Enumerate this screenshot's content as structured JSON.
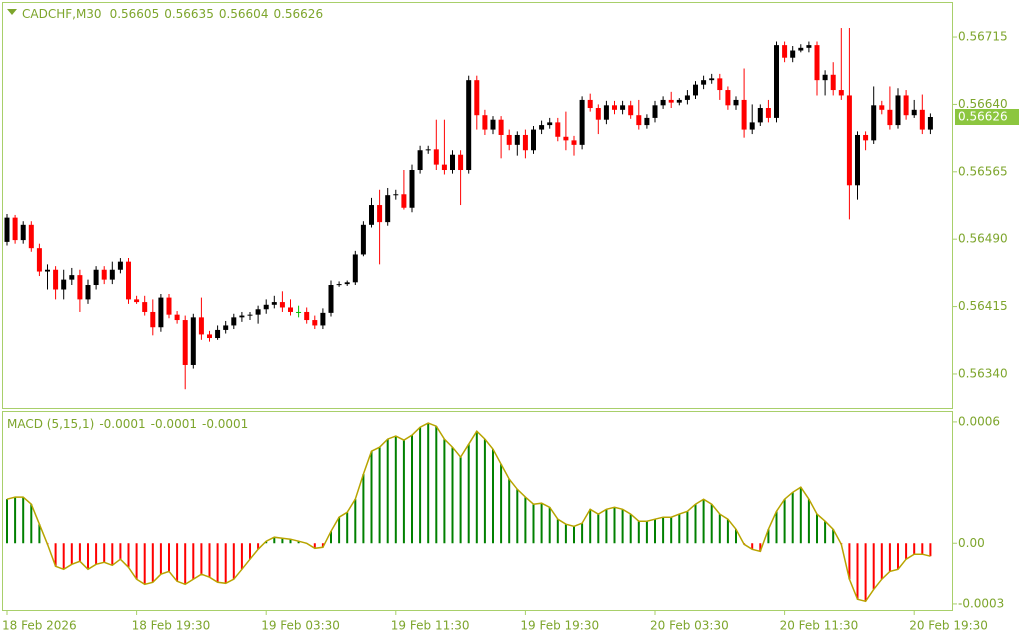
{
  "chart_data": [
    {
      "type": "candlestick",
      "title": "CADCHF,M30",
      "header_values": [
        0.56605,
        0.56635,
        0.56604,
        0.56626
      ],
      "categories": [
        "18 Feb 2026",
        null,
        null,
        null,
        null,
        null,
        null,
        null,
        null,
        null,
        null,
        null,
        null,
        null,
        null,
        null,
        "18 Feb 19:30",
        null,
        null,
        null,
        null,
        null,
        null,
        null,
        null,
        null,
        null,
        null,
        null,
        null,
        null,
        null,
        "19 Feb 03:30",
        null,
        null,
        null,
        null,
        null,
        null,
        null,
        null,
        null,
        null,
        null,
        null,
        null,
        null,
        null,
        "19 Feb 11:30",
        null,
        null,
        null,
        null,
        null,
        null,
        null,
        null,
        null,
        null,
        null,
        null,
        null,
        null,
        null,
        "19 Feb 19:30",
        null,
        null,
        null,
        null,
        null,
        null,
        null,
        null,
        null,
        null,
        null,
        null,
        null,
        null,
        null,
        "20 Feb 03:30",
        null,
        null,
        null,
        null,
        null,
        null,
        null,
        null,
        null,
        null,
        null,
        null,
        null,
        null,
        null,
        "20 Feb 11:30",
        null,
        null,
        null,
        null,
        null,
        null,
        null,
        null,
        null,
        null,
        null,
        null,
        null,
        null,
        null,
        "20 Feb 19:30",
        null,
        null
      ],
      "open": [
        0.56487,
        0.56514,
        0.56489,
        0.56506,
        0.5648,
        0.56454,
        0.56456,
        0.56434,
        0.56445,
        0.5645,
        0.56423,
        0.56439,
        0.56456,
        0.56445,
        0.56456,
        0.56465,
        0.56423,
        0.5642,
        0.56409,
        0.56392,
        0.56425,
        0.56406,
        0.564,
        0.5635,
        0.56403,
        0.56384,
        0.5638,
        0.56389,
        0.56394,
        0.56403,
        0.56405,
        0.56406,
        0.56412,
        0.56417,
        0.5642,
        0.56414,
        0.56409,
        0.56409,
        0.564,
        0.56394,
        0.56408,
        0.56439,
        0.5644,
        0.56442,
        0.56473,
        0.56506,
        0.56528,
        0.56509,
        0.56539,
        0.5654,
        0.56525,
        0.56567,
        0.56589,
        0.5659,
        0.56573,
        0.56567,
        0.56584,
        0.56567,
        0.56667,
        0.56628,
        0.56612,
        0.56623,
        0.56606,
        0.56595,
        0.56606,
        0.56589,
        0.56612,
        0.56617,
        0.5662,
        0.56604,
        0.566,
        0.56595,
        0.56645,
        0.56636,
        0.56623,
        0.56639,
        0.56634,
        0.56639,
        0.56628,
        0.56617,
        0.56625,
        0.56639,
        0.56645,
        0.56642,
        0.56645,
        0.5665,
        0.56662,
        0.56667,
        0.56669,
        0.56656,
        0.56639,
        0.56645,
        0.56612,
        0.5662,
        0.56636,
        0.56625,
        0.56706,
        0.56692,
        0.567,
        0.56703,
        0.56706,
        0.56667,
        0.56673,
        0.56656,
        0.5665,
        0.5655,
        0.56606,
        0.566,
        0.56639,
        0.56634,
        0.56617,
        0.5665,
        0.56628,
        0.56634,
        0.56612
      ],
      "high": [
        0.56518,
        0.56517,
        0.5651,
        0.5651,
        0.56485,
        0.56462,
        0.5646,
        0.56456,
        0.56458,
        0.56456,
        0.56445,
        0.5646,
        0.5646,
        0.56465,
        0.56469,
        0.56469,
        0.56427,
        0.56427,
        0.56423,
        0.56429,
        0.56429,
        0.5641,
        0.56405,
        0.56407,
        0.56425,
        0.56388,
        0.56394,
        0.56399,
        0.56407,
        0.56409,
        0.56409,
        0.56416,
        0.56423,
        0.56427,
        0.56432,
        0.56423,
        0.56416,
        0.56414,
        0.56405,
        0.56413,
        0.56444,
        0.56443,
        0.56444,
        0.56477,
        0.5651,
        0.56536,
        0.56545,
        0.56547,
        0.56545,
        0.56567,
        0.56573,
        0.56594,
        0.56594,
        0.56623,
        0.56623,
        0.56589,
        0.56589,
        0.56672,
        0.56672,
        0.56634,
        0.56627,
        0.56627,
        0.56612,
        0.5661,
        0.56612,
        0.56616,
        0.56622,
        0.56625,
        0.56625,
        0.56632,
        0.56605,
        0.56649,
        0.56652,
        0.5664,
        0.56644,
        0.56644,
        0.56644,
        0.56644,
        0.56645,
        0.56629,
        0.56644,
        0.56649,
        0.56654,
        0.56647,
        0.56656,
        0.56666,
        0.56672,
        0.56674,
        0.56674,
        0.5666,
        0.56649,
        0.5668,
        0.5664,
        0.5664,
        0.56645,
        0.5671,
        0.5671,
        0.56705,
        0.56707,
        0.5671,
        0.5671,
        0.56678,
        0.56687,
        0.56725,
        0.56725,
        0.5661,
        0.5661,
        0.5666,
        0.56644,
        0.5666,
        0.56658,
        0.56656,
        0.56645,
        0.56651,
        0.5663
      ],
      "low": [
        0.56483,
        0.56485,
        0.56485,
        0.56476,
        0.56449,
        0.56434,
        0.56423,
        0.56423,
        0.56439,
        0.56409,
        0.56418,
        0.56434,
        0.5644,
        0.5644,
        0.56452,
        0.56418,
        0.56418,
        0.56405,
        0.56383,
        0.56387,
        0.56402,
        0.56396,
        0.56323,
        0.56346,
        0.56378,
        0.56376,
        0.56378,
        0.56385,
        0.5639,
        0.56398,
        0.564,
        0.56396,
        0.56407,
        0.56413,
        0.56409,
        0.56405,
        0.56403,
        0.56396,
        0.5639,
        0.5639,
        0.56404,
        0.56437,
        0.56438,
        0.56439,
        0.56471,
        0.56503,
        0.56462,
        0.56505,
        0.56534,
        0.56523,
        0.5652,
        0.56563,
        0.56585,
        0.56567,
        0.56562,
        0.56563,
        0.56528,
        0.56563,
        0.56612,
        0.56606,
        0.56607,
        0.5658,
        0.56589,
        0.56583,
        0.5658,
        0.56585,
        0.56607,
        0.56613,
        0.56599,
        0.56589,
        0.56583,
        0.5659,
        0.56632,
        0.56607,
        0.56618,
        0.56629,
        0.56629,
        0.56624,
        0.56612,
        0.56613,
        0.5662,
        0.56635,
        0.56636,
        0.56639,
        0.5664,
        0.56646,
        0.56657,
        0.56663,
        0.56645,
        0.56634,
        0.56634,
        0.56603,
        0.56607,
        0.56616,
        0.5662,
        0.5662,
        0.56687,
        0.56687,
        0.56698,
        0.56698,
        0.5665,
        0.5665,
        0.5665,
        0.56645,
        0.56512,
        0.56534,
        0.56589,
        0.56596,
        0.56629,
        0.56612,
        0.56613,
        0.56623,
        0.56625,
        0.56607,
        0.56607
      ],
      "close": [
        0.56514,
        0.56489,
        0.56506,
        0.5648,
        0.56454,
        0.56456,
        0.56434,
        0.56445,
        0.5645,
        0.56423,
        0.56439,
        0.56456,
        0.56445,
        0.56456,
        0.56465,
        0.56423,
        0.5642,
        0.56409,
        0.56392,
        0.56425,
        0.56406,
        0.564,
        0.5635,
        0.56403,
        0.56384,
        0.5638,
        0.56389,
        0.56394,
        0.56403,
        0.56405,
        0.56406,
        0.56412,
        0.56417,
        0.5642,
        0.56414,
        0.56409,
        0.56409,
        0.564,
        0.56394,
        0.56408,
        0.56439,
        0.5644,
        0.56442,
        0.56473,
        0.56506,
        0.56528,
        0.56509,
        0.56539,
        0.5654,
        0.56525,
        0.56567,
        0.56589,
        0.5659,
        0.56573,
        0.56567,
        0.56584,
        0.56567,
        0.56667,
        0.56628,
        0.56612,
        0.56623,
        0.56606,
        0.56595,
        0.56606,
        0.56589,
        0.56612,
        0.56617,
        0.5662,
        0.56604,
        0.566,
        0.56595,
        0.56645,
        0.56636,
        0.56623,
        0.56639,
        0.56634,
        0.56639,
        0.56628,
        0.56617,
        0.56625,
        0.56639,
        0.56645,
        0.56642,
        0.56645,
        0.5665,
        0.56662,
        0.56667,
        0.56669,
        0.56656,
        0.56639,
        0.56645,
        0.56612,
        0.5662,
        0.56636,
        0.56625,
        0.56706,
        0.56692,
        0.567,
        0.56703,
        0.56706,
        0.56667,
        0.56673,
        0.56656,
        0.5665,
        0.5655,
        0.56606,
        0.566,
        0.56639,
        0.56634,
        0.56617,
        0.5665,
        0.56628,
        0.56634,
        0.56612,
        0.56626
      ],
      "up_color": "#000000",
      "down_color": "#ff0000",
      "doji_color": "#00c000",
      "current_price": 0.56626,
      "current_price_color": "#8cc63f",
      "ylim": [
        0.56301,
        0.56754
      ],
      "yticks": [
        0.56715,
        {
          "value": 0.5664,
          "label": "0.56640"
        },
        0.56565,
        {
          "value": 0.5649,
          "label": "0.56490"
        },
        0.56415,
        {
          "value": 0.5634,
          "label": "0.56340"
        }
      ]
    },
    {
      "type": "bar",
      "title": "MACD (5,15,1)",
      "header_values": [
        -0.0001,
        -0.0001,
        -0.0001
      ],
      "values": [
        0.000218,
        0.000228,
        0.000228,
        0.000193,
        9.4e-05,
        -5e-06,
        -0.000114,
        -0.000129,
        -0.000104,
        -8.9e-05,
        -0.000129,
        -0.000104,
        -9.4e-05,
        -0.000109,
        -7.9e-05,
        -0.000119,
        -0.000178,
        -0.000203,
        -0.000193,
        -0.000153,
        -0.000139,
        -0.000188,
        -0.000203,
        -0.000178,
        -0.000153,
        -0.000168,
        -0.000193,
        -0.000198,
        -0.000178,
        -0.000129,
        -7.9e-05,
        -3e-05,
        1e-05,
        3e-05,
        2.5e-05,
        2e-05,
        1e-05,
        0,
        -2.5e-05,
        -2e-05,
        5.9e-05,
        0.000129,
        0.000153,
        0.000218,
        0.000342,
        0.000455,
        0.000475,
        0.000515,
        0.00053,
        0.00051,
        0.000535,
        0.000574,
        0.000594,
        0.000579,
        0.000515,
        0.000475,
        0.000426,
        0.00049,
        0.000554,
        0.000515,
        0.000465,
        0.000391,
        0.000317,
        0.000267,
        0.000228,
        0.000193,
        0.000198,
        0.000178,
        0.000119,
        9.4e-05,
        8.4e-05,
        9.9e-05,
        0.000168,
        0.000144,
        0.000168,
        0.000178,
        0.000168,
        0.000144,
        0.000109,
        0.000109,
        0.000119,
        0.000129,
        0.000129,
        0.000144,
        0.000158,
        0.000193,
        0.000218,
        0.000193,
        0.000144,
        0.000119,
        6.9e-05,
        -5e-06,
        -3e-05,
        -4e-05,
        6.9e-05,
        0.000158,
        0.000218,
        0.000252,
        0.000277,
        0.000218,
        0.000144,
        0.000109,
        6.9e-05,
        -5e-06,
        -0.000178,
        -0.000277,
        -0.000287,
        -0.000228,
        -0.000178,
        -0.000139,
        -0.000129,
        -7.9e-05,
        -5.4e-05,
        -5.4e-05,
        -6.4e-05
      ],
      "pos_color": "#008000",
      "neg_color": "#ff0000",
      "line_color": "#b8a400",
      "ylim": [
        -0.000335,
        0.000649
      ],
      "yticks": [
        0.0006,
        {
          "value": 0,
          "label": "0.00"
        },
        -0.0003
      ]
    }
  ]
}
